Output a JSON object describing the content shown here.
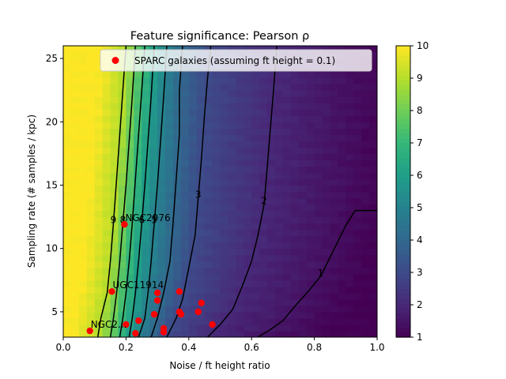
{
  "chart_data": {
    "type": "heatmap",
    "title": "Feature significance: Pearson ρ",
    "xlabel": "Noise / ft height ratio",
    "ylabel": "Sampling rate (# samples / kpc)",
    "xlim": [
      0.0,
      1.0
    ],
    "ylim": [
      3,
      26
    ],
    "x_ticks": [
      0.0,
      0.2,
      0.4,
      0.6,
      0.8,
      1.0
    ],
    "x_tick_labels": [
      "0.0",
      "0.2",
      "0.4",
      "0.6",
      "0.8",
      "1.0"
    ],
    "y_ticks": [
      5,
      10,
      15,
      20,
      25
    ],
    "y_tick_labels": [
      "5",
      "10",
      "15",
      "20",
      "25"
    ],
    "colorbar": {
      "min": 1,
      "max": 10,
      "ticks": [
        1,
        2,
        3,
        4,
        5,
        6,
        7,
        8,
        9,
        10
      ],
      "tick_labels": [
        "1",
        "2",
        "3",
        "4",
        "5",
        "6",
        "7",
        "8",
        "9",
        "10"
      ],
      "colormap": "viridis"
    },
    "contours": [
      {
        "level": 1,
        "label": "1",
        "points": [
          [
            0.62,
            3.0
          ],
          [
            0.66,
            3.6
          ],
          [
            0.7,
            4.3
          ],
          [
            0.74,
            5.5
          ],
          [
            0.78,
            6.6
          ],
          [
            0.82,
            7.8
          ],
          [
            0.86,
            9.8
          ],
          [
            0.9,
            11.8
          ],
          [
            0.93,
            13.0
          ],
          [
            1.0,
            13.0
          ]
        ]
      },
      {
        "level": 2,
        "label": "2",
        "points": [
          [
            0.46,
            3.0
          ],
          [
            0.5,
            4.0
          ],
          [
            0.54,
            5.2
          ],
          [
            0.57,
            7.0
          ],
          [
            0.6,
            9.0
          ],
          [
            0.62,
            11.0
          ],
          [
            0.64,
            13.5
          ],
          [
            0.65,
            16.5
          ],
          [
            0.66,
            19.5
          ],
          [
            0.67,
            22.5
          ],
          [
            0.68,
            26.0
          ]
        ]
      },
      {
        "level": 3,
        "label": "3",
        "points": [
          [
            0.33,
            3.0
          ],
          [
            0.36,
            4.5
          ],
          [
            0.38,
            6.0
          ],
          [
            0.4,
            8.5
          ],
          [
            0.42,
            11.0
          ],
          [
            0.43,
            14.0
          ],
          [
            0.44,
            17.0
          ],
          [
            0.45,
            20.5
          ],
          [
            0.46,
            23.5
          ],
          [
            0.47,
            26.0
          ]
        ]
      },
      {
        "level": 4,
        "label": "",
        "points": [
          [
            0.28,
            3.0
          ],
          [
            0.3,
            4.5
          ],
          [
            0.32,
            6.5
          ],
          [
            0.34,
            9.0
          ],
          [
            0.35,
            12.0
          ],
          [
            0.36,
            15.5
          ],
          [
            0.37,
            19.0
          ],
          [
            0.37,
            22.5
          ],
          [
            0.38,
            26.0
          ]
        ]
      },
      {
        "level": 5,
        "label": "5",
        "points": [
          [
            0.24,
            3.0
          ],
          [
            0.26,
            4.5
          ],
          [
            0.27,
            6.5
          ],
          [
            0.28,
            9.0
          ],
          [
            0.29,
            12.0
          ],
          [
            0.3,
            15.0
          ],
          [
            0.31,
            18.5
          ],
          [
            0.32,
            22.0
          ],
          [
            0.33,
            26.0
          ]
        ]
      },
      {
        "level": 6,
        "label": "6",
        "points": [
          [
            0.21,
            3.0
          ],
          [
            0.22,
            4.5
          ],
          [
            0.23,
            6.5
          ],
          [
            0.24,
            9.0
          ],
          [
            0.25,
            12.0
          ],
          [
            0.26,
            15.0
          ],
          [
            0.27,
            18.5
          ],
          [
            0.28,
            22.0
          ],
          [
            0.29,
            26.0
          ]
        ]
      },
      {
        "level": 7,
        "label": "",
        "points": [
          [
            0.18,
            3.0
          ],
          [
            0.19,
            4.5
          ],
          [
            0.2,
            6.5
          ],
          [
            0.21,
            9.0
          ],
          [
            0.22,
            12.0
          ],
          [
            0.23,
            15.5
          ],
          [
            0.24,
            19.0
          ],
          [
            0.25,
            22.5
          ],
          [
            0.26,
            26.0
          ]
        ]
      },
      {
        "level": 8,
        "label": "8",
        "points": [
          [
            0.15,
            3.0
          ],
          [
            0.16,
            4.5
          ],
          [
            0.17,
            6.5
          ],
          [
            0.18,
            9.0
          ],
          [
            0.19,
            12.0
          ],
          [
            0.2,
            15.0
          ],
          [
            0.21,
            18.5
          ],
          [
            0.22,
            22.0
          ],
          [
            0.23,
            26.0
          ]
        ]
      },
      {
        "level": 9,
        "label": "9",
        "points": [
          [
            0.11,
            3.0
          ],
          [
            0.12,
            4.5
          ],
          [
            0.14,
            6.5
          ],
          [
            0.15,
            9.0
          ],
          [
            0.16,
            12.0
          ],
          [
            0.17,
            15.5
          ],
          [
            0.18,
            19.0
          ],
          [
            0.19,
            22.5
          ],
          [
            0.2,
            26.0
          ]
        ]
      }
    ],
    "series": [
      {
        "name": "SPARC galaxies (assuming ft height = 0.1)",
        "points": [
          {
            "x": 0.195,
            "y": 11.9,
            "label": "NGC2976"
          },
          {
            "x": 0.155,
            "y": 6.6,
            "label": "UGC11914"
          },
          {
            "x": 0.085,
            "y": 3.5,
            "label": "NGC2..."
          },
          {
            "x": 0.2,
            "y": 4.0,
            "label": ""
          },
          {
            "x": 0.24,
            "y": 4.3,
            "label": ""
          },
          {
            "x": 0.23,
            "y": 3.3,
            "label": ""
          },
          {
            "x": 0.29,
            "y": 4.8,
            "label": ""
          },
          {
            "x": 0.3,
            "y": 5.9,
            "label": ""
          },
          {
            "x": 0.3,
            "y": 6.5,
            "label": ""
          },
          {
            "x": 0.32,
            "y": 3.7,
            "label": ""
          },
          {
            "x": 0.32,
            "y": 3.4,
            "label": ""
          },
          {
            "x": 0.37,
            "y": 6.6,
            "label": ""
          },
          {
            "x": 0.37,
            "y": 5.0,
            "label": ""
          },
          {
            "x": 0.375,
            "y": 4.8,
            "label": ""
          },
          {
            "x": 0.43,
            "y": 5.0,
            "label": ""
          },
          {
            "x": 0.44,
            "y": 5.7,
            "label": ""
          },
          {
            "x": 0.475,
            "y": 4.0,
            "label": ""
          }
        ]
      }
    ],
    "legend_location": "top-right",
    "colors": {
      "points": "#ff0000"
    }
  }
}
